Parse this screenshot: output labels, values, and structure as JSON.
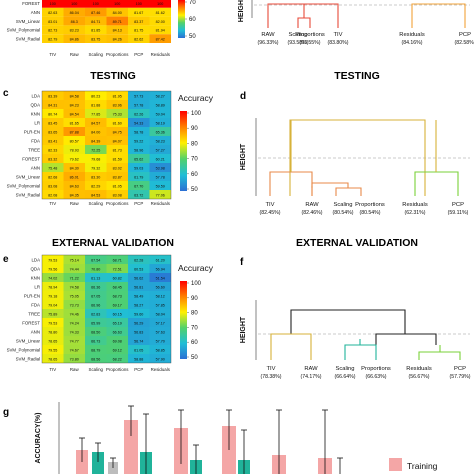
{
  "titles": {
    "testing_heat": "TESTING",
    "testing_dend": "TESTING",
    "external_heat": "EXTERNAL VALIDATION",
    "external_dend": "EXTERNAL VALIDATION"
  },
  "panel_labels": {
    "c": "c",
    "d": "d",
    "e": "e",
    "f": "f",
    "g": "g"
  },
  "heat_columns": [
    "TIV",
    "Raw",
    "Scaling",
    "Proportions",
    "PCP",
    "Residuals"
  ],
  "legend": {
    "title": "Accuracy",
    "ticks": [
      "100",
      "90",
      "80",
      "70",
      "60",
      "50"
    ]
  },
  "colors": {
    "high": "#ff0000",
    "mid_high": "#ffff00",
    "mid": "#52d16b",
    "low": "#2b6fd4"
  },
  "heat_top": {
    "rows": [
      "FOREST",
      "ANN",
      "SVM_Linear",
      "SVM_Polynomial",
      "SVM_Radial"
    ],
    "values": [
      [
        "100",
        "100",
        "100",
        "100",
        "100",
        "100"
      ],
      [
        "82.63",
        "86.04",
        "87.46",
        "84.00",
        "81.67",
        "81.62"
      ],
      [
        "83.01",
        "86.3",
        "84.71",
        "89.71",
        "83.37",
        "82.00"
      ],
      [
        "82.73",
        "83.23",
        "81.85",
        "84.13",
        "81.75",
        "81.94"
      ],
      [
        "82.79",
        "84.86",
        "83.75",
        "84.26",
        "82.62",
        "87.42"
      ]
    ],
    "legend_ticks": [
      "70",
      "60",
      "50"
    ]
  },
  "dend_top": {
    "y_label": "HEIGHT",
    "leaves": [
      "RAW",
      "Scaling",
      "Proportions",
      "TIV",
      "Residuals",
      "PCP"
    ],
    "percents": [
      "(96.33%)",
      "(93.58%)",
      "(93.55%)",
      "(83.80%)",
      "(84.16%)",
      "(82.58%)"
    ]
  },
  "heat_testing": {
    "rows": [
      "LDA",
      "QDA",
      "KNN",
      "LR",
      "PLR-EN",
      "FDA",
      "TREE",
      "FOREST",
      "ANN",
      "SVM_Linear",
      "SVM_Polynomial",
      "SVM_Radial"
    ],
    "values": [
      [
        "83.39",
        "84.58",
        "80.23",
        "81.95",
        "57.73",
        "58.27"
      ],
      [
        "84.31",
        "84.23",
        "81.88",
        "83.96",
        "57.78",
        "58.89"
      ],
      [
        "80.74",
        "84.54",
        "77.85",
        "75.33",
        "62.26",
        "59.04"
      ],
      [
        "83.45",
        "81.65",
        "84.57",
        "81.60",
        "54.33",
        "58.19"
      ],
      [
        "83.65",
        "87.88",
        "84.00",
        "84.75",
        "58.78",
        "65.36"
      ],
      [
        "83.41",
        "80.57",
        "84.39",
        "84.07",
        "59.22",
        "58.23"
      ],
      [
        "82.33",
        "78.93",
        "72.25",
        "81.73",
        "58.96",
        "57.27"
      ],
      [
        "83.32",
        "79.62",
        "79.68",
        "81.59",
        "65.62",
        "60.21"
      ],
      [
        "75.48",
        "84.30",
        "79.32",
        "83.02",
        "59.03",
        "53.98"
      ],
      [
        "82.68",
        "86.01",
        "83.30",
        "83.87",
        "61.79",
        "57.78"
      ],
      [
        "83.08",
        "84.63",
        "82.29",
        "81.05",
        "67.70",
        "59.59"
      ],
      [
        "82.08",
        "84.35",
        "84.53",
        "83.08",
        "63.72",
        "77.06"
      ]
    ]
  },
  "dend_testing": {
    "y_label": "HEIGHT",
    "leaves": [
      "TIV",
      "RAW",
      "Scaling",
      "Proportions",
      "Residuals",
      "PCP"
    ],
    "percents": [
      "(82.45%)",
      "(82.46%)",
      "(80.54%)",
      "(80.54%)",
      "(62.31%)",
      "(59.11%)"
    ]
  },
  "heat_external": {
    "rows": [
      "LDA",
      "QDA",
      "KNN",
      "LR",
      "PLR-EN",
      "FDA",
      "TREE",
      "FOREST",
      "ANN",
      "SVM_Linear",
      "SVM_Polynomial",
      "SVM_Radial"
    ],
    "values": [
      [
        "79.53",
        "75.14",
        "67.54",
        "68.71",
        "62.28",
        "61.20"
      ],
      [
        "79.56",
        "74.44",
        "70.80",
        "72.51",
        "60.53",
        "56.94"
      ],
      [
        "74.02",
        "71.22",
        "61.13",
        "60.82",
        "56.62",
        "51.54"
      ],
      [
        "78.94",
        "74.58",
        "66.36",
        "68.45",
        "56.81",
        "56.60"
      ],
      [
        "79.18",
        "75.05",
        "67.05",
        "68.73",
        "58.49",
        "58.12"
      ],
      [
        "79.04",
        "73.73",
        "66.96",
        "69.17",
        "58.27",
        "57.85"
      ],
      [
        "75.89",
        "74.46",
        "62.83",
        "60.15",
        "59.60",
        "58.04"
      ],
      [
        "79.53",
        "74.24",
        "65.99",
        "65.19",
        "56.29",
        "57.17"
      ],
      [
        "78.80",
        "74.33",
        "68.50",
        "66.63",
        "56.83",
        "57.63"
      ],
      [
        "78.65",
        "74.77",
        "66.73",
        "69.08",
        "56.74",
        "57.70"
      ],
      [
        "79.55",
        "74.67",
        "68.79",
        "69.12",
        "61.05",
        "58.85"
      ],
      [
        "78.65",
        "73.80",
        "68.56",
        "68.22",
        "58.88",
        "57.90"
      ]
    ]
  },
  "dend_external": {
    "y_label": "HEIGHT",
    "leaves": [
      "TIV",
      "RAW",
      "Scaling",
      "Proportions",
      "Residuals",
      "PCP"
    ],
    "percents": [
      "(78.38%)",
      "(74.17%)",
      "(66.64%)",
      "(66.63%)",
      "(56.67%)",
      "(57.79%)"
    ]
  },
  "bottom_chart": {
    "y_label": "ACCURACY(%)",
    "legend_training": "Training",
    "colors": {
      "training": "#f4a6a6",
      "testing": "#20b39a",
      "external": "#bdbdbd"
    }
  }
}
